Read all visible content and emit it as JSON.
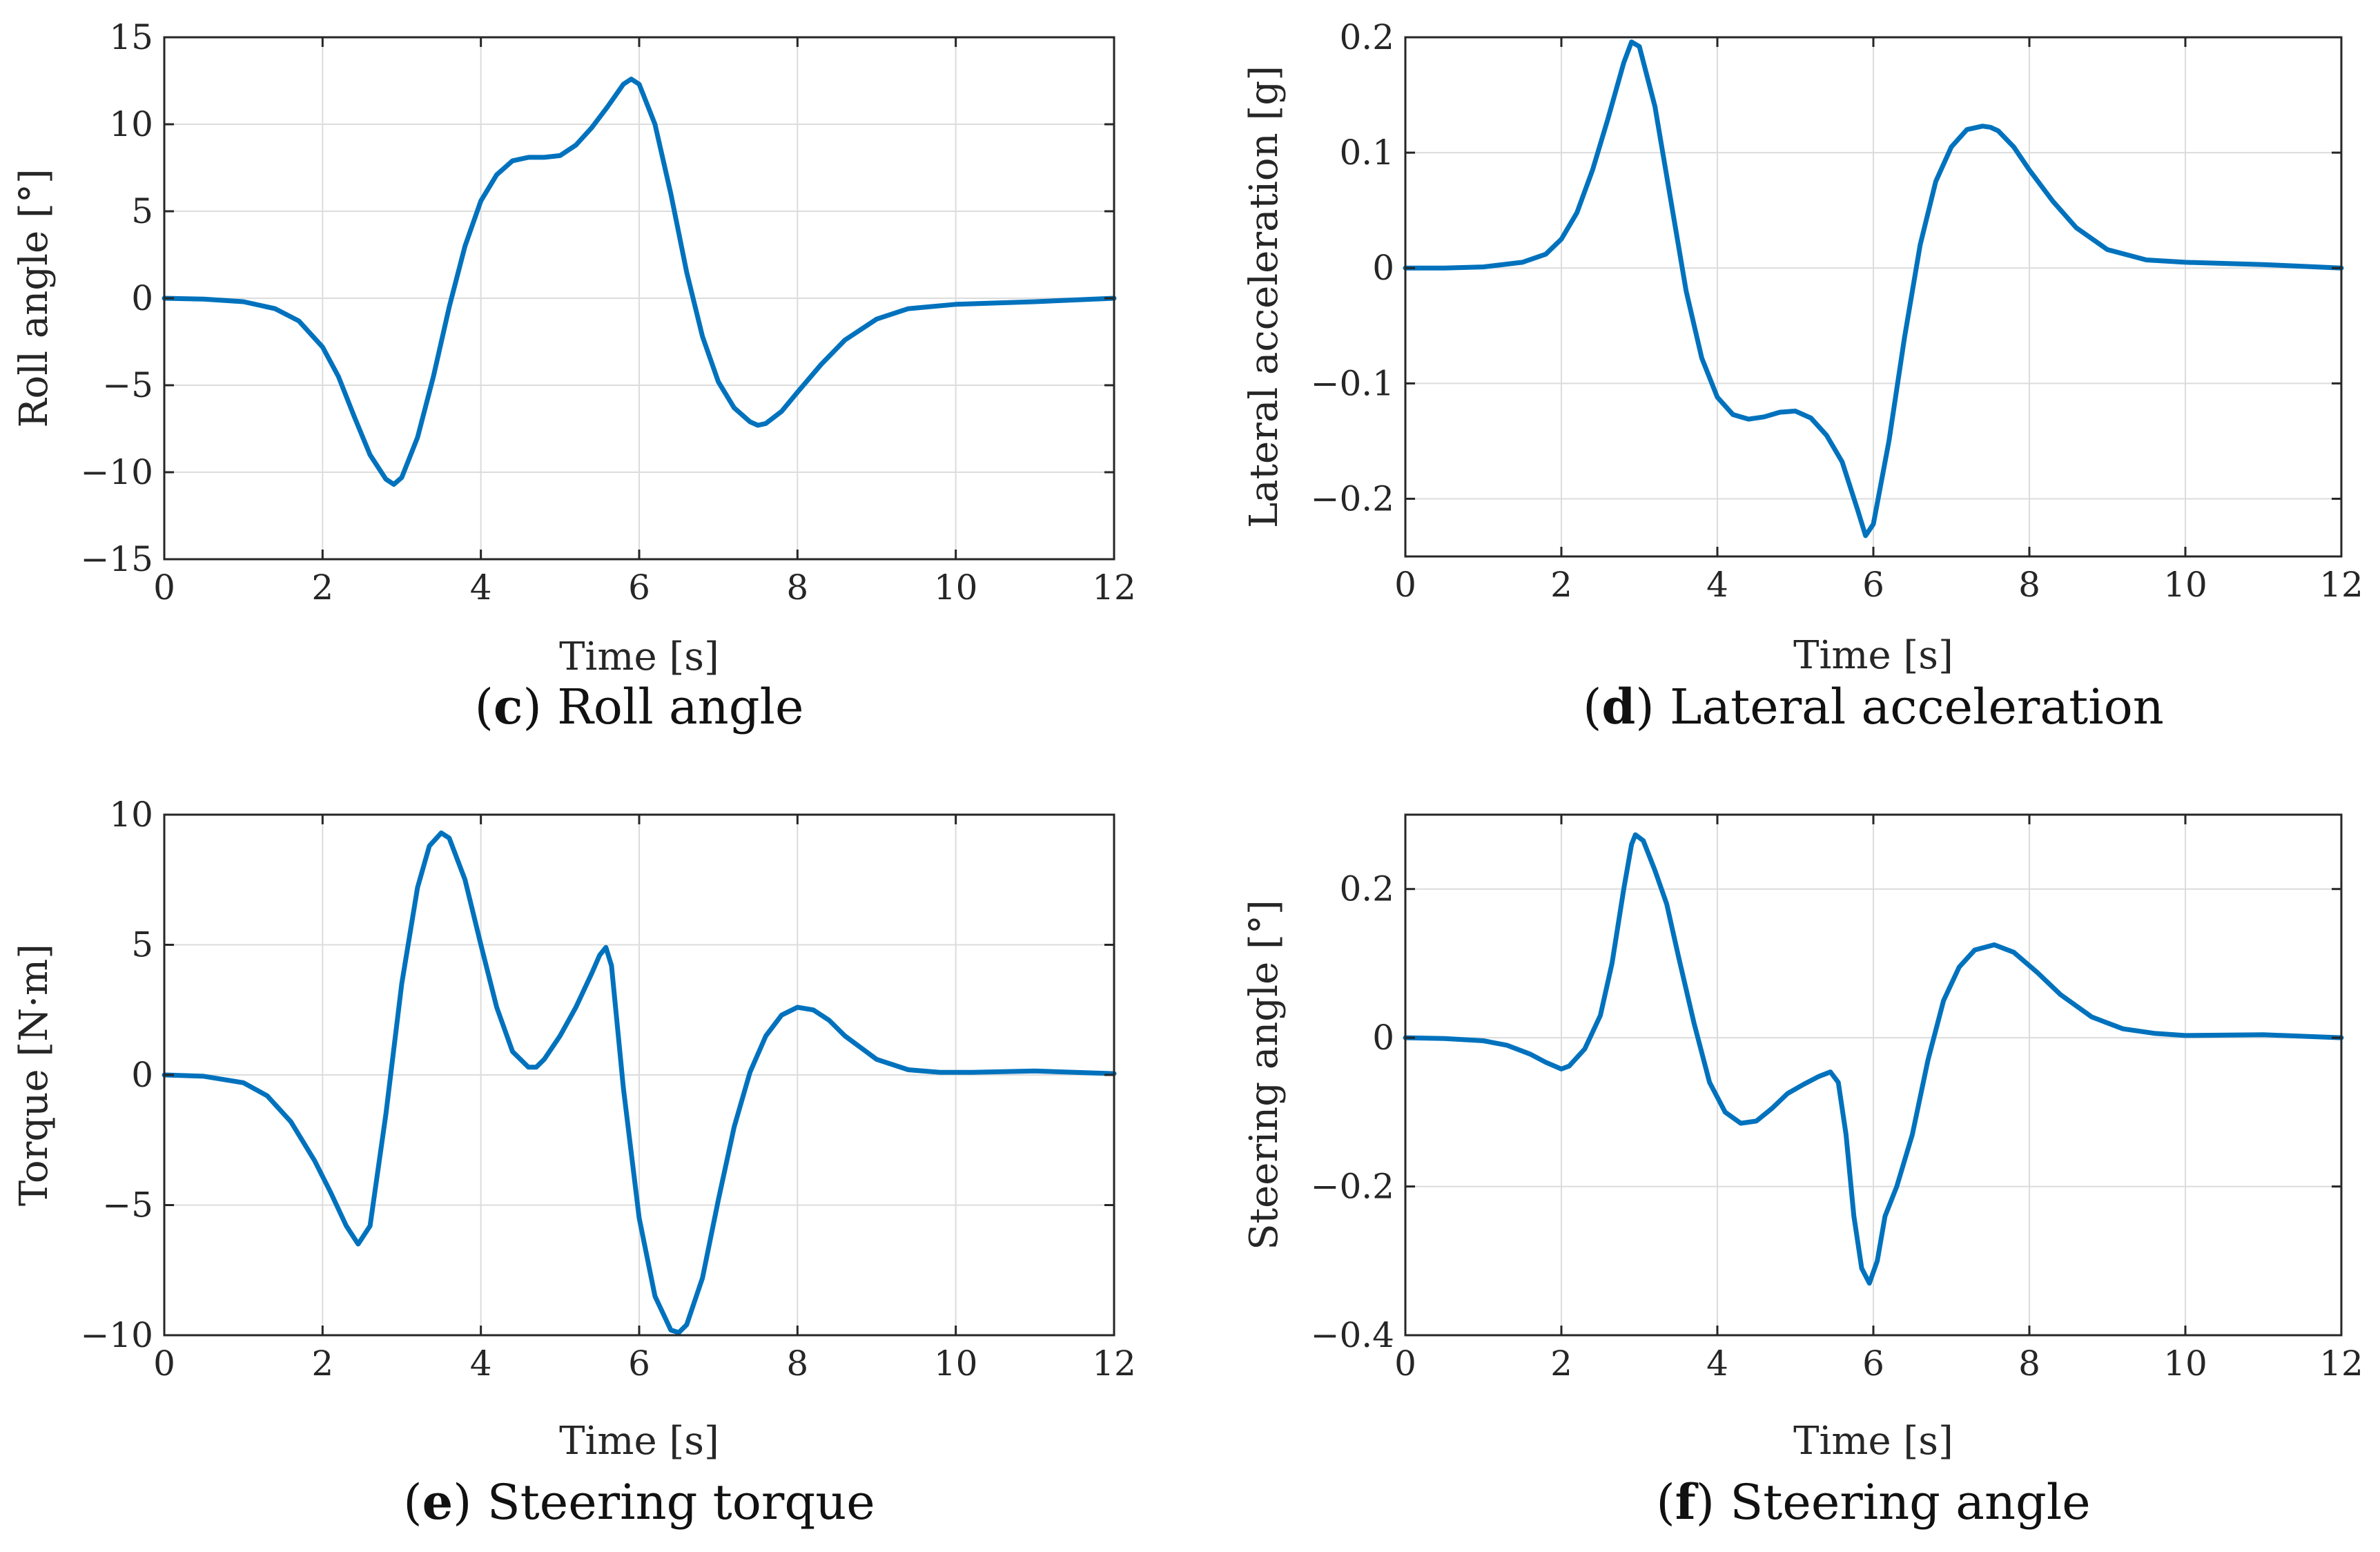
{
  "colors": {
    "line": "#0072BD",
    "grid": "#DCDCDC",
    "axis": "#262626"
  },
  "chart_data": [
    {
      "type": "line",
      "caption_letter": "c",
      "caption_text": "Roll angle",
      "xlabel": "Time [s]",
      "ylabel": "Roll angle [°]",
      "xlim": [
        0,
        12
      ],
      "ylim": [
        -15,
        15
      ],
      "xticks": [
        0,
        2,
        4,
        6,
        8,
        10,
        12
      ],
      "yticks": [
        -15,
        -10,
        -5,
        0,
        5,
        10,
        15
      ],
      "grid": true,
      "series": [
        {
          "x": [
            0,
            0.5,
            1.0,
            1.4,
            1.7,
            2.0,
            2.2,
            2.4,
            2.6,
            2.8,
            2.9,
            3.0,
            3.2,
            3.4,
            3.6,
            3.8,
            4.0,
            4.2,
            4.4,
            4.6,
            4.8,
            5.0,
            5.2,
            5.4,
            5.6,
            5.8,
            5.9,
            6.0,
            6.2,
            6.4,
            6.6,
            6.8,
            7.0,
            7.2,
            7.4,
            7.5,
            7.6,
            7.8,
            8.0,
            8.3,
            8.6,
            9.0,
            9.4,
            10.0,
            11.0,
            12.0
          ],
          "y": [
            0,
            -0.05,
            -0.2,
            -0.6,
            -1.3,
            -2.8,
            -4.5,
            -6.8,
            -9.0,
            -10.4,
            -10.7,
            -10.3,
            -8.0,
            -4.5,
            -0.5,
            3.0,
            5.6,
            7.1,
            7.9,
            8.1,
            8.1,
            8.2,
            8.8,
            9.8,
            11.0,
            12.3,
            12.6,
            12.3,
            10.0,
            6.0,
            1.5,
            -2.2,
            -4.8,
            -6.3,
            -7.1,
            -7.3,
            -7.2,
            -6.5,
            -5.4,
            -3.8,
            -2.4,
            -1.2,
            -0.6,
            -0.35,
            -0.2,
            0.0
          ]
        }
      ]
    },
    {
      "type": "line",
      "caption_letter": "d",
      "caption_text": "Lateral acceleration",
      "xlabel": "Time [s]",
      "ylabel": "Lateral acceleration [g]",
      "xlim": [
        0,
        12
      ],
      "ylim": [
        -0.25,
        0.2
      ],
      "xticks": [
        0,
        2,
        4,
        6,
        8,
        10,
        12
      ],
      "yticks": [
        -0.2,
        -0.1,
        0,
        0.1,
        0.2
      ],
      "ytick_labels": [
        "−0.2",
        "−0.1",
        "0",
        "0.1",
        "0.2"
      ],
      "grid": true,
      "series": [
        {
          "x": [
            0,
            0.5,
            1.0,
            1.5,
            1.8,
            2.0,
            2.2,
            2.4,
            2.6,
            2.8,
            2.9,
            3.0,
            3.2,
            3.4,
            3.6,
            3.8,
            4.0,
            4.2,
            4.4,
            4.6,
            4.8,
            5.0,
            5.2,
            5.4,
            5.6,
            5.8,
            5.9,
            6.0,
            6.2,
            6.4,
            6.6,
            6.8,
            7.0,
            7.2,
            7.4,
            7.5,
            7.6,
            7.8,
            8.0,
            8.3,
            8.6,
            9.0,
            9.5,
            10.0,
            11.0,
            12.0
          ],
          "y": [
            0,
            0,
            0.001,
            0.005,
            0.012,
            0.025,
            0.048,
            0.085,
            0.13,
            0.178,
            0.196,
            0.192,
            0.14,
            0.06,
            -0.02,
            -0.078,
            -0.112,
            -0.127,
            -0.131,
            -0.129,
            -0.125,
            -0.124,
            -0.13,
            -0.145,
            -0.168,
            -0.21,
            -0.232,
            -0.222,
            -0.15,
            -0.06,
            0.02,
            0.075,
            0.105,
            0.12,
            0.123,
            0.122,
            0.119,
            0.105,
            0.085,
            0.058,
            0.035,
            0.016,
            0.007,
            0.005,
            0.003,
            0.0
          ]
        }
      ]
    },
    {
      "type": "line",
      "caption_letter": "e",
      "caption_text": "Steering torque",
      "xlabel": "Time [s]",
      "ylabel": "Torque [N·m]",
      "xlim": [
        0,
        12
      ],
      "ylim": [
        -10,
        10
      ],
      "xticks": [
        0,
        2,
        4,
        6,
        8,
        10,
        12
      ],
      "yticks": [
        -10,
        -5,
        0,
        5,
        10
      ],
      "grid": true,
      "series": [
        {
          "x": [
            0,
            0.5,
            1.0,
            1.3,
            1.6,
            1.9,
            2.1,
            2.3,
            2.45,
            2.6,
            2.8,
            3.0,
            3.2,
            3.35,
            3.5,
            3.6,
            3.8,
            4.0,
            4.2,
            4.4,
            4.6,
            4.7,
            4.8,
            5.0,
            5.2,
            5.4,
            5.5,
            5.58,
            5.65,
            5.8,
            6.0,
            6.2,
            6.4,
            6.5,
            6.6,
            6.8,
            7.0,
            7.2,
            7.4,
            7.6,
            7.8,
            8.0,
            8.2,
            8.4,
            8.6,
            9.0,
            9.4,
            9.8,
            10.2,
            11.0,
            12.0
          ],
          "y": [
            0,
            -0.05,
            -0.3,
            -0.8,
            -1.8,
            -3.3,
            -4.5,
            -5.8,
            -6.5,
            -5.8,
            -1.5,
            3.5,
            7.2,
            8.8,
            9.3,
            9.1,
            7.5,
            5.0,
            2.6,
            0.9,
            0.3,
            0.3,
            0.6,
            1.5,
            2.6,
            3.9,
            4.6,
            4.9,
            4.2,
            -0.5,
            -5.5,
            -8.5,
            -9.8,
            -9.9,
            -9.6,
            -7.8,
            -4.8,
            -2.0,
            0.1,
            1.5,
            2.3,
            2.6,
            2.5,
            2.1,
            1.5,
            0.6,
            0.2,
            0.1,
            0.1,
            0.15,
            0.05
          ]
        }
      ]
    },
    {
      "type": "line",
      "caption_letter": "f",
      "caption_text": "Steering angle",
      "xlabel": "Time [s]",
      "ylabel": "Steering angle [°]",
      "xlim": [
        0,
        12
      ],
      "ylim": [
        -0.4,
        0.3
      ],
      "xticks": [
        0,
        2,
        4,
        6,
        8,
        10,
        12
      ],
      "yticks": [
        -0.4,
        -0.2,
        0,
        0.2
      ],
      "ytick_labels": [
        "−0.4",
        "−0.2",
        "0",
        "0.2"
      ],
      "grid": true,
      "series": [
        {
          "x": [
            0,
            0.5,
            1.0,
            1.3,
            1.6,
            1.8,
            2.0,
            2.1,
            2.3,
            2.5,
            2.65,
            2.8,
            2.9,
            2.95,
            3.05,
            3.2,
            3.35,
            3.5,
            3.7,
            3.9,
            4.1,
            4.3,
            4.5,
            4.7,
            4.9,
            5.1,
            5.3,
            5.45,
            5.55,
            5.65,
            5.75,
            5.85,
            5.95,
            6.05,
            6.15,
            6.3,
            6.5,
            6.7,
            6.9,
            7.1,
            7.3,
            7.55,
            7.8,
            8.1,
            8.4,
            8.8,
            9.2,
            9.6,
            10.0,
            11.0,
            12.0
          ],
          "y": [
            0,
            -0.001,
            -0.004,
            -0.01,
            -0.022,
            -0.033,
            -0.042,
            -0.038,
            -0.015,
            0.03,
            0.1,
            0.2,
            0.26,
            0.273,
            0.265,
            0.225,
            0.18,
            0.11,
            0.02,
            -0.06,
            -0.1,
            -0.115,
            -0.112,
            -0.095,
            -0.075,
            -0.063,
            -0.052,
            -0.046,
            -0.06,
            -0.13,
            -0.24,
            -0.31,
            -0.33,
            -0.3,
            -0.24,
            -0.2,
            -0.13,
            -0.03,
            0.05,
            0.095,
            0.118,
            0.125,
            0.115,
            0.088,
            0.058,
            0.028,
            0.012,
            0.006,
            0.003,
            0.004,
            0.0
          ]
        }
      ]
    }
  ]
}
